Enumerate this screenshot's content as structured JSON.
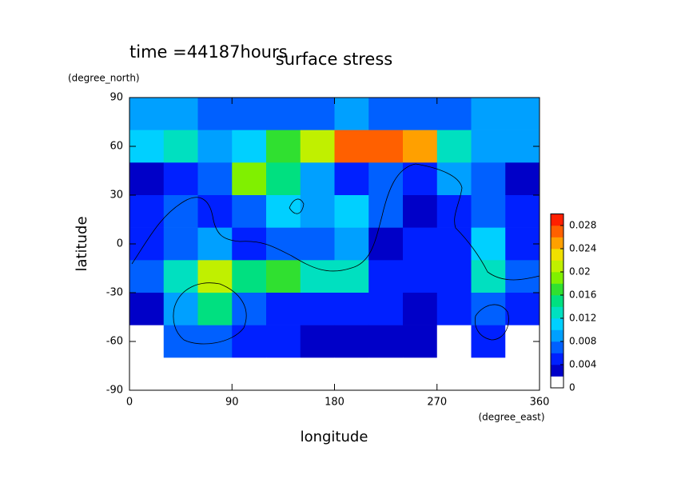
{
  "chart_data": {
    "type": "heatmap",
    "title": "surface stress",
    "subtitle": "time =44187hours",
    "x_label": "longitude",
    "x_unit": "(degree_east)",
    "y_label": "latitude",
    "y_unit": "(degree_north)",
    "xlim": [
      0,
      360
    ],
    "xticks": [
      0,
      90,
      180,
      270,
      360
    ],
    "ylim": [
      -90,
      90
    ],
    "yticks": [
      -90,
      -60,
      -30,
      0,
      30,
      60,
      90
    ],
    "x": [
      15,
      45,
      75,
      105,
      135,
      165,
      195,
      225,
      255,
      285,
      315,
      345
    ],
    "y": [
      80,
      60,
      40,
      20,
      0,
      -20,
      -40,
      -60,
      -80
    ],
    "z": [
      [
        0.008,
        0.008,
        0.006,
        0.006,
        0.006,
        0.006,
        0.008,
        0.006,
        0.006,
        0.006,
        0.008,
        0.008
      ],
      [
        0.01,
        0.012,
        0.008,
        0.01,
        0.016,
        0.02,
        0.026,
        0.026,
        0.024,
        0.012,
        0.008,
        0.008
      ],
      [
        0.002,
        0.004,
        0.006,
        0.018,
        0.014,
        0.008,
        0.004,
        0.006,
        0.004,
        0.008,
        0.006,
        0.002
      ],
      [
        0.004,
        0.006,
        0.004,
        0.006,
        0.01,
        0.008,
        0.01,
        0.006,
        0.002,
        0.004,
        0.006,
        0.004
      ],
      [
        0.004,
        0.006,
        0.008,
        0.004,
        0.006,
        0.006,
        0.008,
        0.002,
        0.004,
        0.004,
        0.01,
        0.004
      ],
      [
        0.006,
        0.012,
        0.02,
        0.014,
        0.016,
        0.012,
        0.012,
        0.004,
        0.004,
        0.004,
        0.012,
        0.006
      ],
      [
        0.002,
        0.008,
        0.014,
        0.006,
        0.004,
        0.004,
        0.004,
        0.004,
        0.002,
        0.004,
        0.006,
        0.004
      ],
      [
        0,
        0.006,
        0.006,
        0.004,
        0.004,
        0.002,
        0.002,
        0.002,
        0.002,
        0,
        0.004,
        0
      ],
      [
        0,
        0,
        0,
        0,
        0,
        0,
        0,
        0,
        0,
        0,
        0,
        0
      ]
    ],
    "clim": [
      0,
      0.03
    ],
    "cticks": [
      0,
      0.004,
      0.008,
      0.012,
      0.016,
      0.02,
      0.024,
      0.028
    ],
    "colors": [
      "#ffffff",
      "#0000c8",
      "#0020ff",
      "#0060ff",
      "#00a0ff",
      "#00d0ff",
      "#00e0c0",
      "#00e080",
      "#30e030",
      "#80f000",
      "#c0f000",
      "#f0e000",
      "#ffa000",
      "#ff6000",
      "#ff2000"
    ]
  }
}
